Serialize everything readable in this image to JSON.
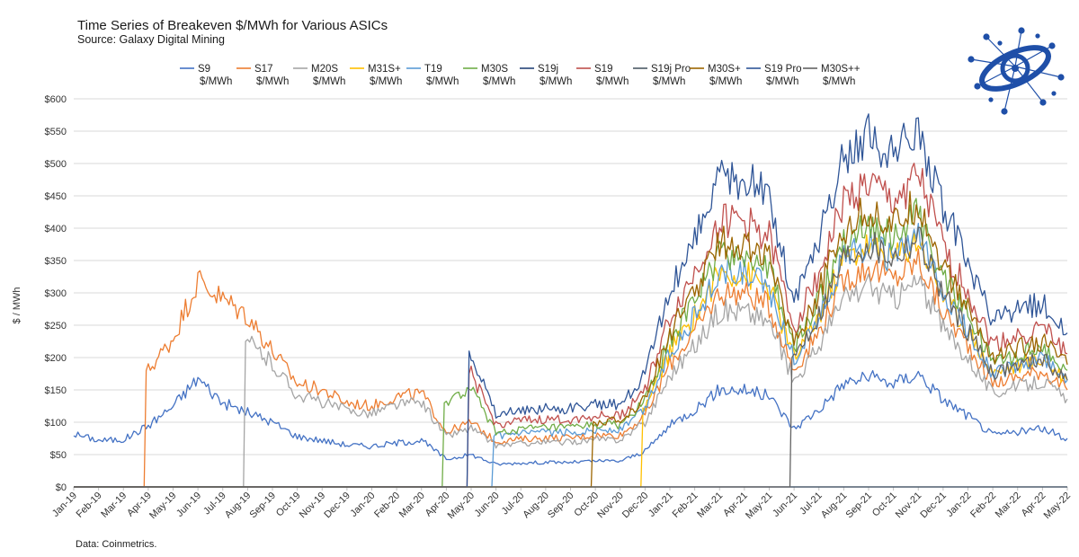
{
  "header": {
    "title": "Time Series of Breakeven $/MWh for Various ASICs",
    "subtitle": "Source: Galaxy Digital Mining"
  },
  "footer": {
    "note": "Data: Coinmetrics."
  },
  "logo": {
    "icon": "galaxy-logo-icon",
    "color": "#1f4fa8"
  },
  "chart_data": {
    "type": "line",
    "title": "Time Series of Breakeven $/MWh for Various ASICs",
    "ylabel": "$ / MWh",
    "xlabel": "",
    "ylim": [
      0,
      600
    ],
    "y_ticks": [
      "$0",
      "$50",
      "$100",
      "$150",
      "$200",
      "$250",
      "$300",
      "$350",
      "$400",
      "$450",
      "$500",
      "$550",
      "$600"
    ],
    "grid": "horizontal",
    "legend_position": "top",
    "categories": [
      "Jan-19",
      "Feb-19",
      "Mar-19",
      "Apr-19",
      "May-19",
      "Jun-19",
      "Jul-19",
      "Aug-19",
      "Sep-19",
      "Oct-19",
      "Nov-19",
      "Dec-19",
      "Jan-20",
      "Feb-20",
      "Mar-20",
      "Apr-20",
      "May-20",
      "Jun-20",
      "Jul-20",
      "Aug-20",
      "Sep-20",
      "Oct-20",
      "Nov-20",
      "Dec-20",
      "Jan-21",
      "Feb-21",
      "Mar-21",
      "Apr-21",
      "May-21",
      "Jun-21",
      "Jul-21",
      "Aug-21",
      "Sep-21",
      "Oct-21",
      "Nov-21",
      "Dec-21",
      "Jan-22",
      "Feb-22",
      "Mar-22",
      "Apr-22",
      "May-22"
    ],
    "base_curve": [
      82,
      72,
      73,
      95,
      125,
      168,
      130,
      115,
      100,
      78,
      72,
      65,
      63,
      68,
      72,
      43,
      50,
      35,
      37,
      38,
      38,
      40,
      40,
      55,
      95,
      120,
      150,
      150,
      140,
      90,
      120,
      160,
      170,
      160,
      175,
      135,
      110,
      80,
      85,
      90,
      75
    ],
    "series": [
      {
        "name": "S9 $/MWh",
        "color": "#4472c4",
        "values": [
          82,
          72,
          73,
          95,
          125,
          168,
          130,
          115,
          100,
          78,
          72,
          65,
          63,
          68,
          72,
          43,
          50,
          35,
          37,
          38,
          38,
          40,
          40,
          55,
          95,
          120,
          150,
          150,
          140,
          90,
          120,
          160,
          170,
          160,
          175,
          135,
          110,
          80,
          85,
          90,
          75
        ]
      },
      {
        "name": "S17 $/MWh",
        "color": "#ed7d31",
        "values": [
          0,
          0,
          0,
          180,
          230,
          320,
          290,
          265,
          210,
          160,
          150,
          130,
          125,
          140,
          145,
          85,
          100,
          70,
          74,
          76,
          76,
          80,
          80,
          110,
          190,
          240,
          300,
          300,
          280,
          180,
          240,
          320,
          340,
          320,
          350,
          270,
          220,
          160,
          170,
          180,
          150
        ]
      },
      {
        "name": "M20S $/MWh",
        "color": "#a5a5a5",
        "values": [
          0,
          0,
          0,
          0,
          0,
          0,
          0,
          225,
          190,
          142,
          131,
          118,
          114,
          127,
          131,
          78,
          91,
          64,
          67,
          69,
          69,
          73,
          73,
          100,
          173,
          218,
          273,
          273,
          255,
          164,
          218,
          291,
          309,
          291,
          318,
          245,
          200,
          145,
          155,
          164,
          136
        ]
      },
      {
        "name": "M31S+ $/MWh",
        "color": "#ffc000",
        "values": [
          0,
          0,
          0,
          0,
          0,
          0,
          0,
          0,
          0,
          0,
          0,
          0,
          0,
          0,
          0,
          0,
          0,
          0,
          0,
          0,
          0,
          0,
          0,
          122,
          209,
          264,
          330,
          330,
          308,
          198,
          264,
          352,
          374,
          352,
          385,
          297,
          242,
          176,
          187,
          198,
          165
        ]
      },
      {
        "name": "T19 $/MWh",
        "color": "#5b9bd5",
        "values": [
          0,
          0,
          0,
          0,
          0,
          0,
          0,
          0,
          0,
          0,
          0,
          0,
          0,
          0,
          0,
          0,
          0,
          78,
          82,
          84,
          84,
          88,
          88,
          121,
          209,
          264,
          330,
          330,
          308,
          198,
          264,
          352,
          374,
          352,
          385,
          297,
          242,
          176,
          187,
          198,
          165
        ]
      },
      {
        "name": "M30S $/MWh",
        "color": "#70ad47",
        "values": [
          0,
          0,
          0,
          0,
          0,
          0,
          0,
          0,
          0,
          0,
          0,
          0,
          0,
          0,
          0,
          130,
          152,
          84,
          89,
          91,
          91,
          96,
          96,
          132,
          228,
          288,
          360,
          360,
          336,
          216,
          288,
          384,
          408,
          384,
          420,
          324,
          264,
          192,
          204,
          216,
          180
        ]
      },
      {
        "name": "S19j $/MWh",
        "color": "#264478",
        "values": [
          0,
          0,
          0,
          0,
          0,
          0,
          0,
          0,
          0,
          0,
          0,
          0,
          0,
          0,
          0,
          0,
          0,
          0,
          0,
          0,
          0,
          0,
          0,
          0,
          0,
          0,
          0,
          0,
          0,
          0,
          0,
          0,
          0,
          0,
          0,
          0,
          0,
          0,
          0,
          0,
          0
        ]
      },
      {
        "name": "S19 $/MWh",
        "color": "#c0504d",
        "values": [
          0,
          0,
          0,
          0,
          0,
          0,
          0,
          0,
          0,
          0,
          0,
          0,
          0,
          0,
          0,
          0,
          175,
          96,
          102,
          104,
          104,
          110,
          110,
          151,
          261,
          330,
          412,
          412,
          385,
          247,
          330,
          440,
          467,
          440,
          481,
          371,
          302,
          220,
          233,
          247,
          206
        ]
      },
      {
        "name": "S19j Pro $/MWh",
        "color": "#4d5a66",
        "values": [
          0,
          0,
          0,
          0,
          0,
          0,
          0,
          0,
          0,
          0,
          0,
          0,
          0,
          0,
          0,
          0,
          0,
          0,
          0,
          0,
          0,
          0,
          0,
          0,
          0,
          0,
          0,
          0,
          0,
          0,
          0,
          0,
          0,
          0,
          0,
          0,
          0,
          0,
          0,
          0,
          0
        ]
      },
      {
        "name": "M30S+ $/MWh",
        "color": "#9c6500",
        "values": [
          0,
          0,
          0,
          0,
          0,
          0,
          0,
          0,
          0,
          0,
          0,
          0,
          0,
          0,
          0,
          0,
          0,
          0,
          0,
          0,
          0,
          101,
          101,
          138,
          238,
          302,
          377,
          377,
          352,
          226,
          302,
          402,
          427,
          402,
          440,
          339,
          276,
          201,
          214,
          226,
          189
        ]
      },
      {
        "name": "S19 Pro $/MWh",
        "color": "#2f5597",
        "values": [
          0,
          0,
          0,
          0,
          0,
          0,
          0,
          0,
          0,
          0,
          0,
          0,
          0,
          0,
          0,
          0,
          210,
          112,
          118,
          121,
          121,
          127,
          127,
          175,
          302,
          382,
          477,
          477,
          445,
          286,
          382,
          509,
          540,
          509,
          556,
          429,
          350,
          254,
          270,
          286,
          238
        ]
      },
      {
        "name": "M30S++ $/MWh",
        "color": "#636363",
        "values": [
          0,
          0,
          0,
          0,
          0,
          0,
          0,
          0,
          0,
          0,
          0,
          0,
          0,
          0,
          0,
          0,
          0,
          0,
          0,
          0,
          0,
          0,
          0,
          0,
          0,
          0,
          0,
          0,
          0,
          200,
          264,
          352,
          374,
          352,
          385,
          297,
          242,
          176,
          187,
          198,
          165
        ]
      }
    ]
  }
}
